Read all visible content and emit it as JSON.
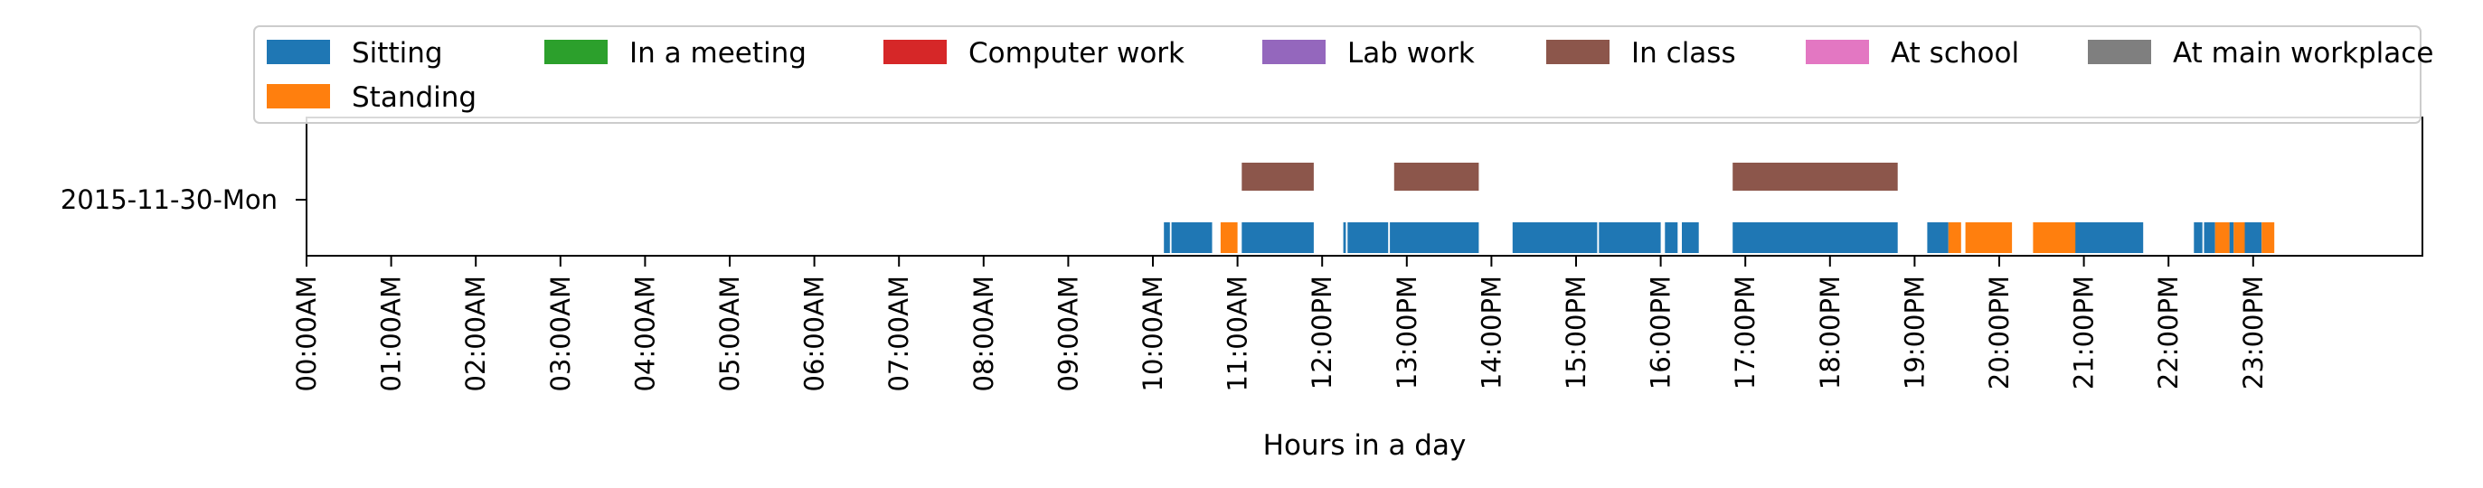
{
  "chart_data": {
    "type": "timeline",
    "xlabel": "Hours in a day",
    "x_unit": "hour of day",
    "xlim": [
      0,
      24
    ],
    "x_ticks": [
      {
        "value": 0,
        "label": "00:00AM"
      },
      {
        "value": 1,
        "label": "01:00AM"
      },
      {
        "value": 2,
        "label": "02:00AM"
      },
      {
        "value": 3,
        "label": "03:00AM"
      },
      {
        "value": 4,
        "label": "04:00AM"
      },
      {
        "value": 5,
        "label": "05:00AM"
      },
      {
        "value": 6,
        "label": "06:00AM"
      },
      {
        "value": 7,
        "label": "07:00AM"
      },
      {
        "value": 8,
        "label": "08:00AM"
      },
      {
        "value": 9,
        "label": "09:00AM"
      },
      {
        "value": 10,
        "label": "10:00AM"
      },
      {
        "value": 11,
        "label": "11:00AM"
      },
      {
        "value": 12,
        "label": "12:00PM"
      },
      {
        "value": 13,
        "label": "13:00PM"
      },
      {
        "value": 14,
        "label": "14:00PM"
      },
      {
        "value": 15,
        "label": "15:00PM"
      },
      {
        "value": 16,
        "label": "16:00PM"
      },
      {
        "value": 17,
        "label": "17:00PM"
      },
      {
        "value": 18,
        "label": "18:00PM"
      },
      {
        "value": 19,
        "label": "19:00PM"
      },
      {
        "value": 20,
        "label": "20:00PM"
      },
      {
        "value": 21,
        "label": "21:00PM"
      },
      {
        "value": 22,
        "label": "22:00PM"
      },
      {
        "value": 23,
        "label": "23:00PM"
      }
    ],
    "y_categories": [
      "2015-11-30-Mon"
    ],
    "legend_position": "top",
    "series": [
      {
        "name": "Sitting",
        "color": "#1f77b4",
        "lane": 0,
        "segments": [
          [
            10.13,
            10.2
          ],
          [
            10.22,
            10.7
          ],
          [
            11.05,
            11.9
          ],
          [
            12.25,
            12.28
          ],
          [
            12.3,
            12.78
          ],
          [
            12.8,
            13.85
          ],
          [
            14.25,
            15.25
          ],
          [
            15.27,
            16.0
          ],
          [
            16.05,
            16.2
          ],
          [
            16.25,
            16.45
          ],
          [
            16.85,
            18.8
          ],
          [
            19.15,
            19.4
          ],
          [
            20.85,
            21.7
          ],
          [
            22.3,
            22.4
          ],
          [
            22.42,
            22.55
          ],
          [
            22.72,
            22.77
          ],
          [
            22.9,
            23.1
          ]
        ]
      },
      {
        "name": "Standing",
        "color": "#ff7f0e",
        "lane": 0,
        "segments": [
          [
            10.8,
            11.0
          ],
          [
            19.4,
            19.55
          ],
          [
            19.6,
            20.15
          ],
          [
            20.4,
            20.9
          ],
          [
            22.55,
            22.72
          ],
          [
            22.77,
            22.9
          ],
          [
            23.1,
            23.25
          ]
        ]
      },
      {
        "name": "In a meeting",
        "color": "#2ca02c",
        "lane": 1,
        "segments": []
      },
      {
        "name": "Computer work",
        "color": "#d62728",
        "lane": 1,
        "segments": []
      },
      {
        "name": "Lab work",
        "color": "#9467bd",
        "lane": 1,
        "segments": []
      },
      {
        "name": "In class",
        "color": "#8c564b",
        "lane": 1,
        "segments": [
          [
            11.05,
            11.9
          ],
          [
            12.85,
            13.85
          ],
          [
            16.85,
            18.8
          ]
        ]
      },
      {
        "name": "At school",
        "color": "#e377c2",
        "lane": 1,
        "segments": []
      },
      {
        "name": "At main workplace",
        "color": "#7f7f7f",
        "lane": 1,
        "segments": []
      }
    ],
    "grid": false
  }
}
